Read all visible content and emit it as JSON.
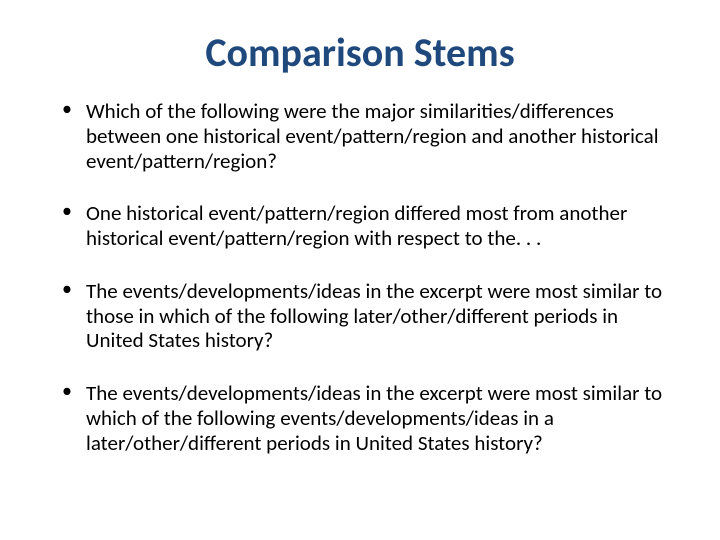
{
  "title": {
    "text": "Comparison Stems",
    "color": "#1f497d",
    "fontsize": 40
  },
  "body": {
    "color": "#000000",
    "fontsize": 21
  },
  "bullets": [
    "Which of the following were the major similarities/differences between one historical event/pattern/region and another historical event/pattern/region?",
    "One historical event/pattern/region differed most from another historical event/pattern/region with respect to the. . .",
    "The events/developments/ideas in the excerpt were most similar to those in which of the following later/other/different periods in United States history?",
    "The events/developments/ideas in the excerpt were most similar to which of the following events/developments/ideas in a later/other/different periods in United States history?"
  ],
  "background_color": "#ffffff"
}
